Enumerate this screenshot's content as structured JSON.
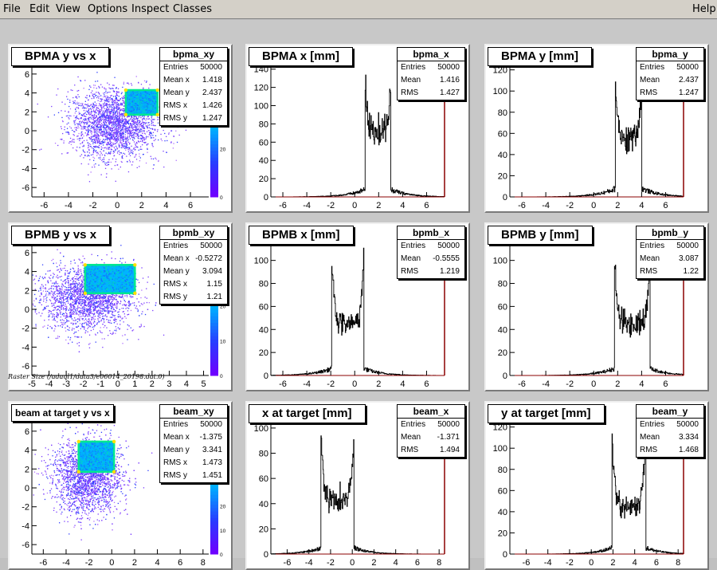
{
  "menubar": {
    "items": [
      "File",
      "Edit",
      "View",
      "Options",
      "Inspect",
      "Classes"
    ],
    "help": "Help"
  },
  "footnote": "Raster Size (/adaql1/data3/e06014_20198.dat.0)",
  "colors": {
    "histo_line": "#000000",
    "axis_right": "#8b0000",
    "pad_bg": "#ffffff",
    "canvas_bg": "#c8c8c8",
    "palette_low": "#6600ff",
    "palette_high": "#00ff00"
  },
  "chart_data": [
    {
      "type": "heatmap",
      "id": "bpma_xy",
      "title": "BPMA y vs x",
      "xlim": [
        -7,
        7.5
      ],
      "ylim": [
        -7,
        7
      ],
      "x_ticks": [
        -6,
        -4,
        -2,
        0,
        2,
        4,
        6
      ],
      "y_ticks": [
        -6,
        -4,
        -2,
        0,
        2,
        4,
        6
      ],
      "palette_ticks": [
        0,
        20,
        40
      ],
      "palette_max": 55,
      "stats": {
        "name": "bpma_xy",
        "rows": [
          [
            "Entries",
            "50000"
          ],
          [
            "Mean x",
            "1.418"
          ],
          [
            "Mean y",
            "2.437"
          ],
          [
            "RMS x",
            "1.426"
          ],
          [
            "RMS y",
            "1.247"
          ]
        ]
      },
      "core": {
        "x_range": [
          0.7,
          3.3
        ],
        "y_range": [
          1.7,
          4.3
        ]
      },
      "halo": {
        "center": [
          -0.3,
          0.8
        ],
        "sigma": [
          1.8,
          1.8
        ]
      }
    },
    {
      "type": "bar",
      "id": "bpma_x",
      "title": "BPMA x [mm]",
      "xlim": [
        -7,
        7.5
      ],
      "ylim": [
        0,
        145
      ],
      "x_ticks": [
        -6,
        -4,
        -2,
        0,
        2,
        4,
        6
      ],
      "y_ticks": [
        0,
        20,
        40,
        60,
        80,
        100,
        120,
        140
      ],
      "stats": {
        "name": "bpma_x",
        "rows": [
          [
            "Entries",
            "50000"
          ],
          [
            "Mean",
            "1.416"
          ],
          [
            "RMS",
            "1.427"
          ]
        ]
      },
      "profile": {
        "lo": 0.85,
        "hi": 3.0,
        "peak": 130,
        "valley": 72,
        "tail": 8
      }
    },
    {
      "type": "bar",
      "id": "bpma_y",
      "title": "BPMA y [mm]",
      "xlim": [
        -7,
        7.5
      ],
      "ylim": [
        0,
        125
      ],
      "x_ticks": [
        -6,
        -4,
        -2,
        0,
        2,
        4,
        6
      ],
      "y_ticks": [
        0,
        20,
        40,
        60,
        80,
        100,
        120
      ],
      "stats": {
        "name": "bpma_y",
        "rows": [
          [
            "Entries",
            "50000"
          ],
          [
            "Mean",
            "2.437"
          ],
          [
            "RMS",
            "1.247"
          ]
        ]
      },
      "profile": {
        "lo": 1.8,
        "hi": 4.0,
        "peak": 118,
        "valley": 55,
        "tail": 8
      }
    },
    {
      "type": "heatmap",
      "id": "bpmb_xy",
      "title": "BPMB y vs x",
      "xlim": [
        -5,
        5.3
      ],
      "ylim": [
        -7,
        7
      ],
      "x_ticks": [
        -5,
        -4,
        -3,
        -2,
        -1,
        0,
        1,
        2,
        3,
        4,
        5
      ],
      "y_ticks": [
        -6,
        -4,
        -2,
        0,
        2,
        4,
        6
      ],
      "palette_ticks": [
        0,
        10,
        20,
        30
      ],
      "palette_max": 38,
      "stats": {
        "name": "bpmb_xy",
        "rows": [
          [
            "Entries",
            "50000"
          ],
          [
            "Mean x",
            "-0.5272"
          ],
          [
            "Mean y",
            "3.094"
          ],
          [
            "RMS x",
            "1.15"
          ],
          [
            "RMS y",
            "1.21"
          ]
        ]
      },
      "core": {
        "x_range": [
          -1.9,
          1.0
        ],
        "y_range": [
          1.7,
          4.7
        ]
      },
      "halo": {
        "center": [
          -1.8,
          1.2
        ],
        "sigma": [
          1.4,
          1.7
        ]
      }
    },
    {
      "type": "bar",
      "id": "bpmb_x",
      "title": "BPMB x [mm]",
      "xlim": [
        -7,
        7.5
      ],
      "ylim": [
        0,
        115
      ],
      "x_ticks": [
        -6,
        -4,
        -2,
        0,
        2,
        4,
        6
      ],
      "y_ticks": [
        0,
        20,
        40,
        60,
        80,
        100
      ],
      "stats": {
        "name": "bpmb_x",
        "rows": [
          [
            "Entries",
            "50000"
          ],
          [
            "Mean",
            "-0.5555"
          ],
          [
            "RMS",
            "1.219"
          ]
        ]
      },
      "profile": {
        "lo": -1.95,
        "hi": 0.75,
        "peak": 110,
        "valley": 45,
        "tail": 6
      }
    },
    {
      "type": "bar",
      "id": "bpmb_y",
      "title": "BPMB y [mm]",
      "xlim": [
        -7,
        7.5
      ],
      "ylim": [
        0,
        115
      ],
      "x_ticks": [
        -6,
        -4,
        -2,
        0,
        2,
        4,
        6
      ],
      "y_ticks": [
        0,
        20,
        40,
        60,
        80,
        100
      ],
      "stats": {
        "name": "bpmb_y",
        "rows": [
          [
            "Entries",
            "50000"
          ],
          [
            "Mean",
            "3.087"
          ],
          [
            "RMS",
            "1.22"
          ]
        ]
      },
      "profile": {
        "lo": 1.7,
        "hi": 4.7,
        "peak": 100,
        "valley": 45,
        "tail": 6
      }
    },
    {
      "type": "heatmap",
      "id": "beam_xy",
      "title": "beam at target y vs x",
      "xlim": [
        -7,
        8.5
      ],
      "ylim": [
        -7,
        7
      ],
      "x_ticks": [
        -6,
        -4,
        -2,
        0,
        2,
        4,
        6,
        8
      ],
      "y_ticks": [
        -6,
        -4,
        -2,
        0,
        2,
        4,
        6
      ],
      "palette_ticks": [
        0,
        10,
        20,
        30,
        40,
        50
      ],
      "palette_max": 55,
      "stats": {
        "name": "beam_xy",
        "rows": [
          [
            "Entries",
            "50000"
          ],
          [
            "Mean x",
            "-1.375"
          ],
          [
            "Mean y",
            "3.341"
          ],
          [
            "RMS x",
            "1.473"
          ],
          [
            "RMS y",
            "1.451"
          ]
        ]
      },
      "core": {
        "x_range": [
          -2.9,
          0.2
        ],
        "y_range": [
          1.7,
          4.9
        ]
      },
      "halo": {
        "center": [
          -2.2,
          1.2
        ],
        "sigma": [
          1.5,
          2.0
        ]
      }
    },
    {
      "type": "bar",
      "id": "beam_x",
      "title": "x at target [mm]",
      "xlim": [
        -7.5,
        8.5
      ],
      "ylim": [
        0,
        105
      ],
      "x_ticks": [
        -6,
        -4,
        -2,
        0,
        2,
        4,
        6,
        8
      ],
      "y_ticks": [
        0,
        20,
        40,
        60,
        80,
        100
      ],
      "stats": {
        "name": "beam_x",
        "rows": [
          [
            "Entries",
            "50000"
          ],
          [
            "Mean",
            "-1.371"
          ],
          [
            "RMS",
            "1.494"
          ]
        ]
      },
      "profile": {
        "lo": -2.9,
        "hi": 0.15,
        "peak": 98,
        "valley": 42,
        "tail": 5
      }
    },
    {
      "type": "bar",
      "id": "beam_y",
      "title": "y at target [mm]",
      "xlim": [
        -7.5,
        8.5
      ],
      "ylim": [
        0,
        125
      ],
      "x_ticks": [
        -6,
        -4,
        -2,
        0,
        2,
        4,
        6,
        8
      ],
      "y_ticks": [
        0,
        20,
        40,
        60,
        80,
        100,
        120
      ],
      "stats": {
        "name": "beam_y",
        "rows": [
          [
            "Entries",
            "50000"
          ],
          [
            "Mean",
            "3.334"
          ],
          [
            "RMS",
            "1.468"
          ]
        ]
      },
      "profile": {
        "lo": 1.9,
        "hi": 5.0,
        "peak": 115,
        "valley": 45,
        "tail": 6
      }
    }
  ]
}
